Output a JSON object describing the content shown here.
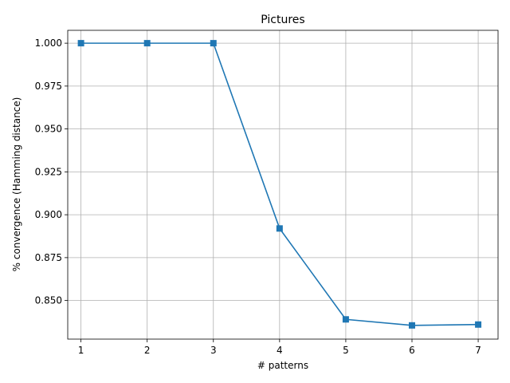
{
  "chart_data": {
    "type": "line",
    "title": "Pictures",
    "xlabel": "# patterns",
    "ylabel": "% convergence (Hamming distance)",
    "x": [
      1,
      2,
      3,
      4,
      5,
      6,
      7
    ],
    "series": [
      {
        "values": [
          1.0,
          1.0,
          1.0,
          0.892,
          0.839,
          0.8355,
          0.836
        ],
        "color": "#1f77b4",
        "marker": "square"
      }
    ],
    "xticks": [
      "1",
      "2",
      "3",
      "4",
      "5",
      "6",
      "7"
    ],
    "yticks": [
      "0.850",
      "0.875",
      "0.900",
      "0.925",
      "0.950",
      "0.975",
      "1.000"
    ],
    "xlim": [
      0.8,
      7.3
    ],
    "ylim": [
      0.8275,
      1.0075
    ],
    "grid": true,
    "legend": "none"
  }
}
